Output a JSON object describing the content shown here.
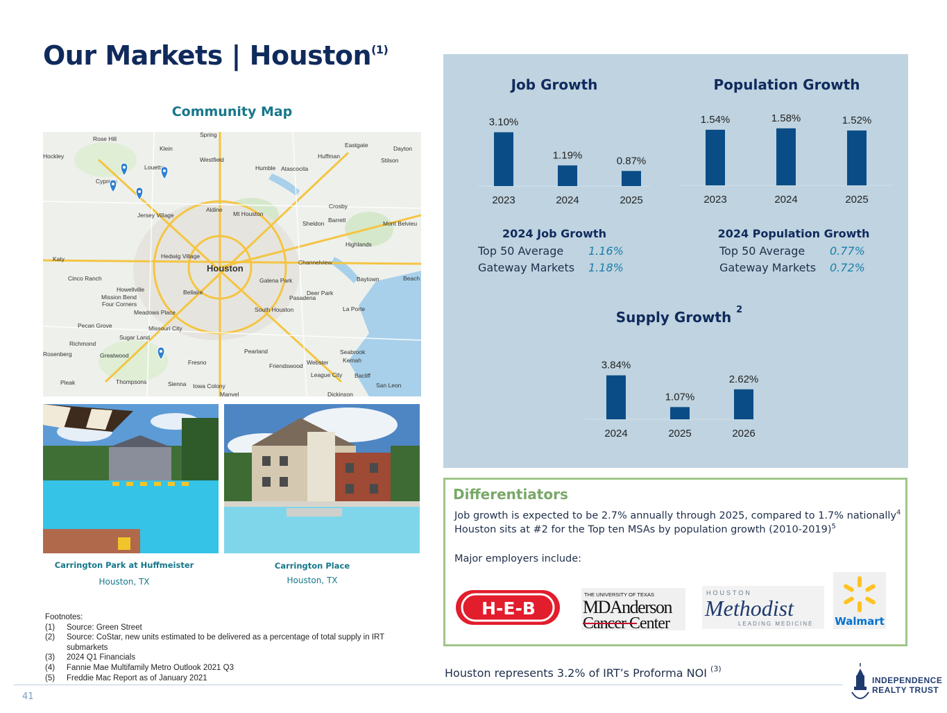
{
  "page": {
    "title": "Our Markets | Houston",
    "title_note": "(1)",
    "page_number": "41"
  },
  "map": {
    "title": "Community Map",
    "labels": [
      "Rose Hill",
      "Spring",
      "Eastgate",
      "Dayton",
      "Hockley",
      "Klein",
      "Westfield",
      "Huffman",
      "Stilson",
      "Louetta",
      "Humble",
      "Atascocita",
      "Cypress",
      "Aldine",
      "Crosby",
      "Jersey Village",
      "Mt Houston",
      "Barrett",
      "Sheldon",
      "Mont Belvieu",
      "Highlands",
      "Katy",
      "Hedwig Village",
      "Houston",
      "Channelview",
      "Cinco Ranch",
      "Galena Park",
      "Baytown",
      "Beach",
      "Howellville",
      "Mission Bend",
      "Four Corners",
      "Bellaire",
      "Pasadena",
      "Deer Park",
      "Meadows Place",
      "South Houston",
      "La Porte",
      "Pecan Grove",
      "Missouri City",
      "Sugar Land",
      "Richmond",
      "Pearland",
      "Seabrook",
      "Rosenberg",
      "Greatwood",
      "Fresno",
      "Friendswood",
      "Webster",
      "Kemah",
      "League City",
      "Bacliff",
      "Pleak",
      "Thompsons",
      "Sienna",
      "Iowa Colony",
      "San Leon",
      "Manvel",
      "Dickinson"
    ]
  },
  "properties": [
    {
      "name": "Carrington Park at Huffmeister",
      "city": "Houston, TX"
    },
    {
      "name": "Carrington Place",
      "city": "Houston, TX"
    }
  ],
  "footnotes": {
    "heading": "Footnotes:",
    "items": [
      {
        "num": "(1)",
        "text": "Source: Green Street"
      },
      {
        "num": "(2)",
        "text": "Source: CoStar, new units estimated to be delivered as a percentage of total supply in IRT submarkets"
      },
      {
        "num": "(3)",
        "text": "2024 Q1 Financials"
      },
      {
        "num": "(4)",
        "text": "Fannie Mae Multifamily Metro Outlook 2021 Q3"
      },
      {
        "num": "(5)",
        "text": "Freddie Mac Report as of January 2021"
      }
    ]
  },
  "chart_data": [
    {
      "type": "bar",
      "title": "Job Growth",
      "categories": [
        "2023",
        "2024",
        "2025"
      ],
      "values": [
        3.1,
        1.19,
        0.87
      ],
      "value_labels": [
        "3.10%",
        "1.19%",
        "0.87%"
      ],
      "unit": "%",
      "color": "#0a4d86"
    },
    {
      "type": "bar",
      "title": "Population Growth",
      "categories": [
        "2023",
        "2024",
        "2025"
      ],
      "values": [
        1.54,
        1.58,
        1.52
      ],
      "value_labels": [
        "1.54%",
        "1.58%",
        "1.52%"
      ],
      "unit": "%",
      "color": "#0a4d86"
    },
    {
      "type": "bar",
      "title": "Supply Growth",
      "title_note": "2",
      "categories": [
        "2024",
        "2025",
        "2026"
      ],
      "values": [
        3.84,
        1.07,
        2.62
      ],
      "value_labels": [
        "3.84%",
        "1.07%",
        "2.62%"
      ],
      "unit": "%",
      "color": "#0a4d86"
    }
  ],
  "job_growth_2024": {
    "title": "2024 Job Growth",
    "rows": [
      {
        "label": "Top 50 Average",
        "value": "1.16%"
      },
      {
        "label": "Gateway Markets",
        "value": "1.18%"
      }
    ]
  },
  "pop_growth_2024": {
    "title": "2024 Population Growth",
    "rows": [
      {
        "label": "Top 50 Average",
        "value": "0.77%"
      },
      {
        "label": "Gateway Markets",
        "value": "0.72%"
      }
    ]
  },
  "differentiators": {
    "title": "Differentiators",
    "line1": "Job growth is expected to be 2.7% annually through 2025, compared to 1.7% nationally",
    "line1_note": "4",
    "line2": "Houston sits at #2 for the Top ten MSAs by population growth (2010-2019)",
    "line2_note": "5",
    "line3": "Major employers include:",
    "employers": {
      "heb": "H-E-B",
      "mda_top": "THE UNIVERSITY OF TEXAS",
      "mda_1": "MDAnderson",
      "mda_2": "Cancer Center",
      "meth_top": "HOUSTON",
      "meth_name": "Methodist",
      "meth_sub": "LEADING MEDICINE",
      "walmart": "Walmart"
    }
  },
  "noi_note": {
    "text": "Houston represents 3.2% of IRT’s Proforma NOI",
    "note": "(3)"
  },
  "brand": {
    "line1": "INDEPENDENCE",
    "line2": "REALTY TRUST"
  },
  "colors": {
    "navy": "#102a5c",
    "teal": "#16778a",
    "bar": "#0a4d86",
    "panel": "#bfd3e0",
    "green": "#a0c58a"
  }
}
